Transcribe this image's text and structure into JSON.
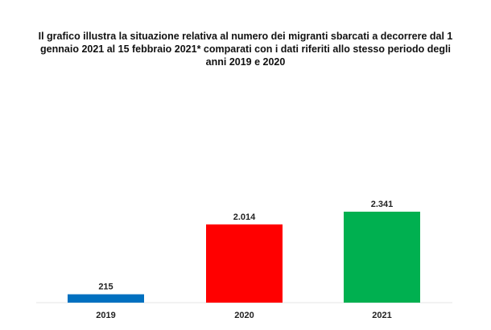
{
  "chart_data": {
    "type": "bar",
    "title": "Il grafico illustra la situazione relativa al numero dei migranti sbarcati a decorrere dal 1 gennaio 2021 al 15 febbraio 2021* comparati con i dati riferiti allo stesso periodo degli anni 2019  e 2020",
    "categories": [
      "2019",
      "2020",
      "2021"
    ],
    "values": [
      215,
      2014,
      2341
    ],
    "value_labels": [
      "215",
      "2.014",
      "2.341"
    ],
    "colors": [
      "#0070c0",
      "#ff0000",
      "#00b050"
    ],
    "xlabel": "",
    "ylabel": "",
    "ylim": [
      0,
      2341
    ],
    "grid": false,
    "legend": "none"
  }
}
